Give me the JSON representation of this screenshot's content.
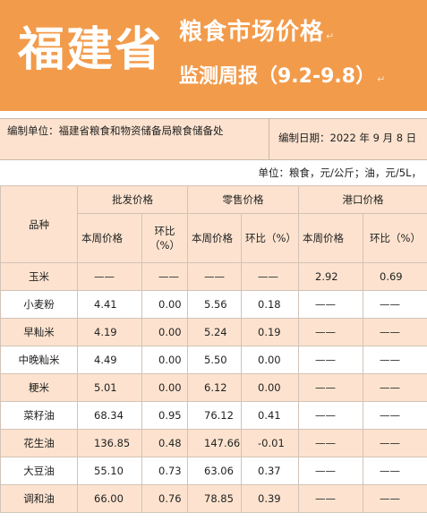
{
  "banner": {
    "province": "福建省",
    "title": "粮食市场价格",
    "subtitle": "监测周报（9.2-9.8）",
    "color": "#f29b4b"
  },
  "info": {
    "org": "编制单位：福建省粮食和物资储备局粮食储备处",
    "date": "编制日期：2022 年 9 月 8 日"
  },
  "unit_note": "单位：粮食，元/公斤；油，元/5L，",
  "table": {
    "variety_header": "品种",
    "groups": [
      "批发价格",
      "零售价格",
      "港口价格"
    ],
    "sub_price": "本周价格",
    "sub_change": "环比（%）",
    "rows": [
      {
        "name": "玉米",
        "wp": "——",
        "wc": "——",
        "rp": "——",
        "rc": "——",
        "pp": "2.92",
        "pc": "0.69"
      },
      {
        "name": "小麦粉",
        "wp": "4.41",
        "wc": "0.00",
        "rp": "5.56",
        "rc": "0.18",
        "pp": "——",
        "pc": "——"
      },
      {
        "name": "早籼米",
        "wp": "4.19",
        "wc": "0.00",
        "rp": "5.24",
        "rc": "0.19",
        "pp": "——",
        "pc": "——"
      },
      {
        "name": "中晚籼米",
        "wp": "4.49",
        "wc": "0.00",
        "rp": "5.50",
        "rc": "0.00",
        "pp": "——",
        "pc": "——"
      },
      {
        "name": "粳米",
        "wp": "5.01",
        "wc": "0.00",
        "rp": "6.12",
        "rc": "0.00",
        "pp": "——",
        "pc": "——"
      },
      {
        "name": "菜籽油",
        "wp": "68.34",
        "wc": "0.95",
        "rp": "76.12",
        "rc": "0.41",
        "pp": "——",
        "pc": "——"
      },
      {
        "name": "花生油",
        "wp": "136.85",
        "wc": "0.48",
        "rp": "147.66",
        "rc": "-0.01",
        "pp": "——",
        "pc": "——"
      },
      {
        "name": "大豆油",
        "wp": "55.10",
        "wc": "0.73",
        "rp": "63.06",
        "rc": "0.37",
        "pp": "——",
        "pc": "——"
      },
      {
        "name": "调和油",
        "wp": "66.00",
        "wc": "0.76",
        "rp": "78.85",
        "rc": "0.39",
        "pp": "——",
        "pc": "——"
      }
    ]
  }
}
